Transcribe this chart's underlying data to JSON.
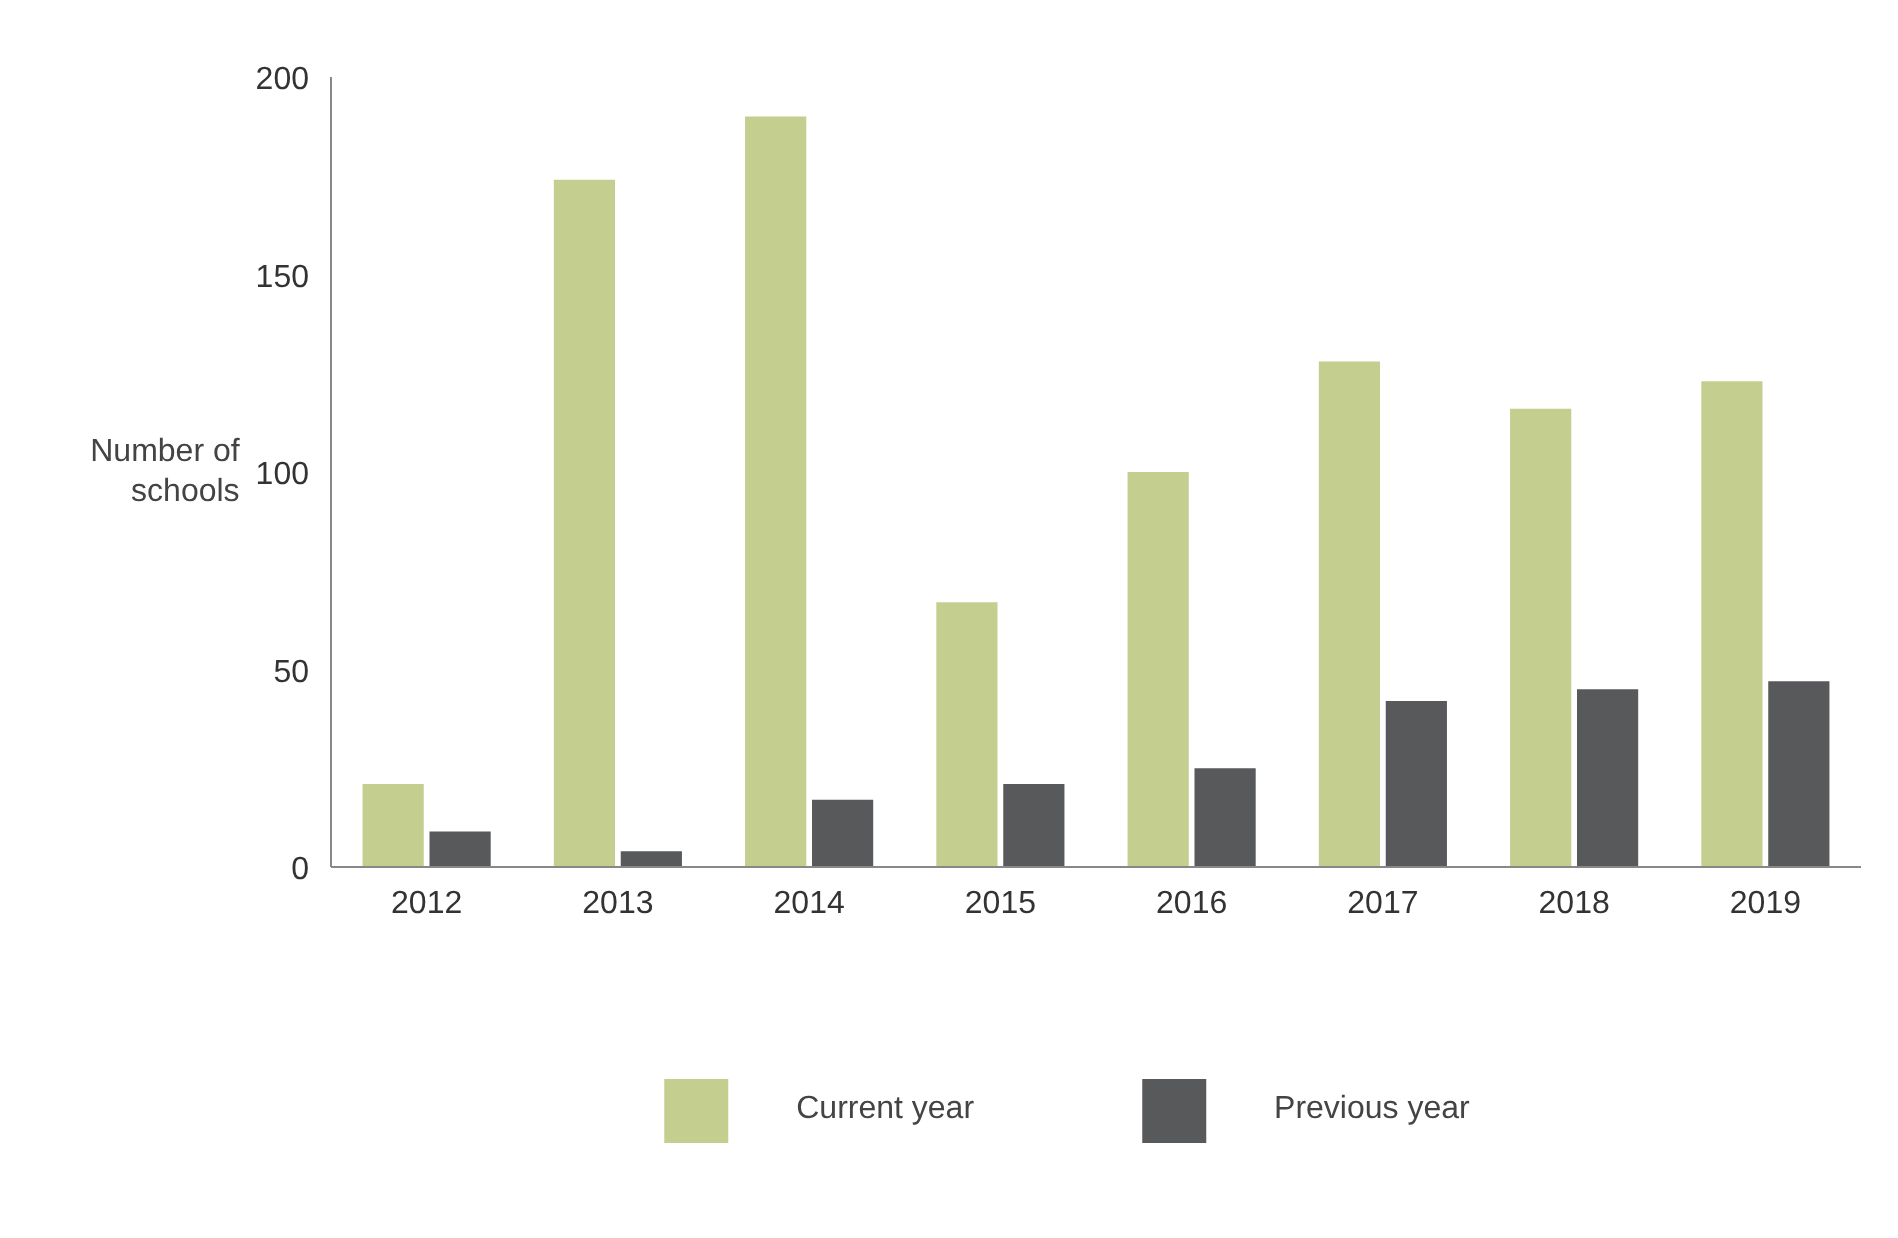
{
  "chart_data": {
    "type": "bar",
    "ylabel": "Number of\nschools",
    "categories": [
      "2012",
      "2013",
      "2014",
      "2015",
      "2016",
      "2017",
      "2018",
      "2019"
    ],
    "series": [
      {
        "name": "Current year",
        "color": "#c4ce8f",
        "values": [
          21,
          174,
          190,
          67,
          100,
          128,
          116,
          123
        ]
      },
      {
        "name": "Previous year",
        "color": "#58595b",
        "values": [
          9,
          4,
          17,
          21,
          25,
          42,
          45,
          47
        ]
      }
    ],
    "ylim": [
      0,
      200
    ],
    "yticks": [
      0,
      50,
      100,
      150,
      200
    ],
    "grid": false,
    "legend": "bottom"
  }
}
